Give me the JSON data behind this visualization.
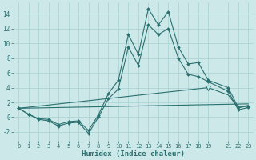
{
  "xlabel": "Humidex (Indice chaleur)",
  "bg_color": "#cce8e8",
  "grid_color": "#aed4d4",
  "line_color": "#2a7070",
  "xlim": [
    -0.5,
    23.5
  ],
  "ylim": [
    -3.2,
    15.5
  ],
  "xticks": [
    0,
    1,
    2,
    3,
    4,
    5,
    6,
    7,
    8,
    9,
    10,
    11,
    12,
    13,
    14,
    15,
    16,
    17,
    18,
    19,
    21,
    22,
    23
  ],
  "yticks": [
    -2,
    0,
    2,
    4,
    6,
    8,
    10,
    12,
    14
  ],
  "line1_x": [
    0,
    1,
    2,
    3,
    4,
    5,
    6,
    7,
    8,
    9,
    10,
    11,
    12,
    13,
    14,
    15,
    16,
    17,
    18,
    19,
    21,
    22,
    23
  ],
  "line1_y": [
    1.2,
    0.4,
    -0.2,
    -0.3,
    -1.0,
    -0.6,
    -0.5,
    -1.8,
    0.3,
    3.2,
    5.0,
    11.2,
    8.5,
    14.7,
    12.5,
    14.3,
    9.5,
    7.2,
    7.4,
    5.0,
    4.0,
    1.3,
    1.5
  ],
  "line2_x": [
    0,
    1,
    2,
    3,
    4,
    5,
    6,
    7,
    8,
    9,
    10,
    11,
    12,
    13,
    14,
    15,
    16,
    17,
    18,
    19,
    21,
    22,
    23
  ],
  "line2_y": [
    1.2,
    0.4,
    -0.3,
    -0.5,
    -1.2,
    -0.8,
    -0.7,
    -2.2,
    0.0,
    2.5,
    3.8,
    9.5,
    7.0,
    12.5,
    11.2,
    12.0,
    8.0,
    5.8,
    5.5,
    4.8,
    3.5,
    1.0,
    1.3
  ],
  "line3_x": [
    0,
    23
  ],
  "line3_y": [
    1.2,
    1.8
  ],
  "line4_x": [
    0,
    19,
    21,
    22,
    23
  ],
  "line4_y": [
    1.2,
    4.0,
    3.0,
    1.3,
    1.6
  ],
  "marker_x1": [
    1,
    2,
    3,
    4,
    5,
    6,
    7,
    8,
    9,
    10,
    11,
    12,
    13,
    14,
    15,
    16,
    17,
    18,
    19,
    21,
    22,
    23
  ],
  "marker_y1": [
    0.4,
    -0.2,
    -0.3,
    -1.0,
    -0.6,
    -0.5,
    -1.8,
    0.3,
    3.2,
    5.0,
    11.2,
    8.5,
    14.7,
    12.5,
    14.3,
    9.5,
    7.2,
    7.4,
    5.0,
    4.0,
    1.3,
    1.5
  ],
  "marker_x2": [
    1,
    3,
    4,
    5,
    6,
    7,
    8,
    9,
    10,
    11,
    12,
    13,
    14,
    15,
    16,
    17,
    18,
    19,
    21,
    22,
    23
  ],
  "marker_y2": [
    0.4,
    -0.5,
    -1.2,
    -0.8,
    -0.7,
    -2.2,
    0.0,
    2.5,
    3.8,
    9.5,
    7.0,
    12.5,
    11.2,
    12.0,
    8.0,
    5.8,
    5.5,
    4.8,
    3.5,
    1.0,
    1.3
  ]
}
